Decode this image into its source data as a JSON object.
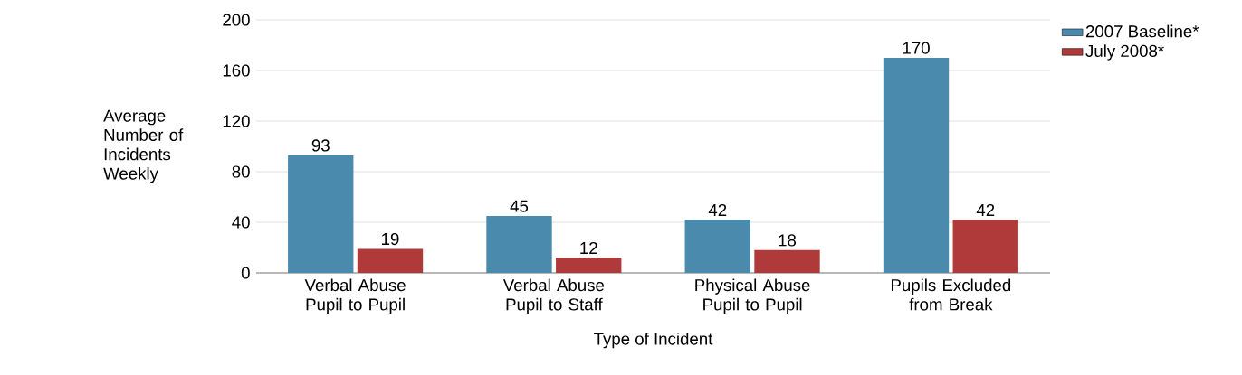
{
  "chart_data": {
    "type": "bar",
    "xlabel": "Type of Incident",
    "ylabel": "Average Number of Incidents Weekly",
    "categories": [
      "Verbal Abuse Pupil to Pupil",
      "Verbal Abuse Pupil to Staff",
      "Physical Abuse Pupil to Pupil",
      "Pupils Excluded from Break"
    ],
    "series": [
      {
        "name": "2007 Baseline*",
        "color": "#4a8aad",
        "values": [
          93,
          45,
          42,
          170
        ]
      },
      {
        "name": "July 2008*",
        "color": "#b0393a",
        "values": [
          19,
          12,
          18,
          42
        ]
      }
    ],
    "ylim": [
      0,
      200
    ],
    "yticks": [
      0,
      40,
      80,
      120,
      160,
      200
    ],
    "grid": "y",
    "legend": "top right",
    "data_labels": true
  }
}
